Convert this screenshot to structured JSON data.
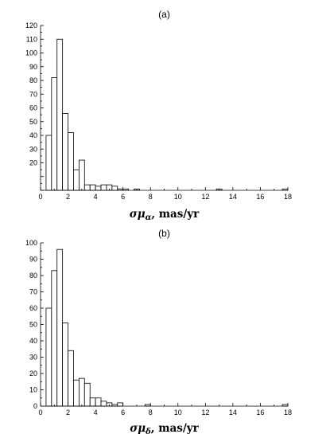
{
  "chart_data": [
    {
      "type": "bar",
      "panel_label": "(a)",
      "xlabel_symbol": "σμ",
      "xlabel_subscript": "α",
      "xlabel_unit": ", mas/yr",
      "xlim": [
        0,
        18
      ],
      "ylim": [
        0,
        120
      ],
      "xticks": [
        0,
        2,
        4,
        6,
        8,
        10,
        12,
        14,
        16,
        18
      ],
      "yticks": [
        20,
        30,
        40,
        50,
        60,
        70,
        80,
        90,
        100,
        110,
        120
      ],
      "bin_width": 0.4,
      "bins": [
        {
          "x0": 0.4,
          "value": 40
        },
        {
          "x0": 0.8,
          "value": 82
        },
        {
          "x0": 1.2,
          "value": 110
        },
        {
          "x0": 1.6,
          "value": 56
        },
        {
          "x0": 2.0,
          "value": 42
        },
        {
          "x0": 2.4,
          "value": 15
        },
        {
          "x0": 2.8,
          "value": 22
        },
        {
          "x0": 3.2,
          "value": 4
        },
        {
          "x0": 3.6,
          "value": 4
        },
        {
          "x0": 4.0,
          "value": 3
        },
        {
          "x0": 4.4,
          "value": 4
        },
        {
          "x0": 4.8,
          "value": 4
        },
        {
          "x0": 5.2,
          "value": 3
        },
        {
          "x0": 5.6,
          "value": 1
        },
        {
          "x0": 6.0,
          "value": 1
        },
        {
          "x0": 6.8,
          "value": 1
        },
        {
          "x0": 12.8,
          "value": 1
        },
        {
          "x0": 17.6,
          "value": 1
        }
      ]
    },
    {
      "type": "bar",
      "panel_label": "(b)",
      "xlabel_symbol": "σμ",
      "xlabel_subscript": "δ",
      "xlabel_unit": ", mas/yr",
      "xlim": [
        0,
        18
      ],
      "ylim": [
        0,
        100
      ],
      "xticks": [
        0,
        2,
        4,
        6,
        8,
        10,
        12,
        14,
        16,
        18
      ],
      "yticks": [
        0,
        10,
        20,
        30,
        40,
        50,
        60,
        70,
        80,
        90,
        100
      ],
      "bin_width": 0.4,
      "bins": [
        {
          "x0": 0.4,
          "value": 60
        },
        {
          "x0": 0.8,
          "value": 83
        },
        {
          "x0": 1.2,
          "value": 96
        },
        {
          "x0": 1.6,
          "value": 51
        },
        {
          "x0": 2.0,
          "value": 34
        },
        {
          "x0": 2.4,
          "value": 16
        },
        {
          "x0": 2.8,
          "value": 17
        },
        {
          "x0": 3.2,
          "value": 14
        },
        {
          "x0": 3.6,
          "value": 5
        },
        {
          "x0": 4.0,
          "value": 5
        },
        {
          "x0": 4.4,
          "value": 3
        },
        {
          "x0": 4.8,
          "value": 2
        },
        {
          "x0": 5.2,
          "value": 1
        },
        {
          "x0": 5.6,
          "value": 2
        },
        {
          "x0": 7.6,
          "value": 1
        },
        {
          "x0": 17.6,
          "value": 1
        }
      ]
    }
  ]
}
